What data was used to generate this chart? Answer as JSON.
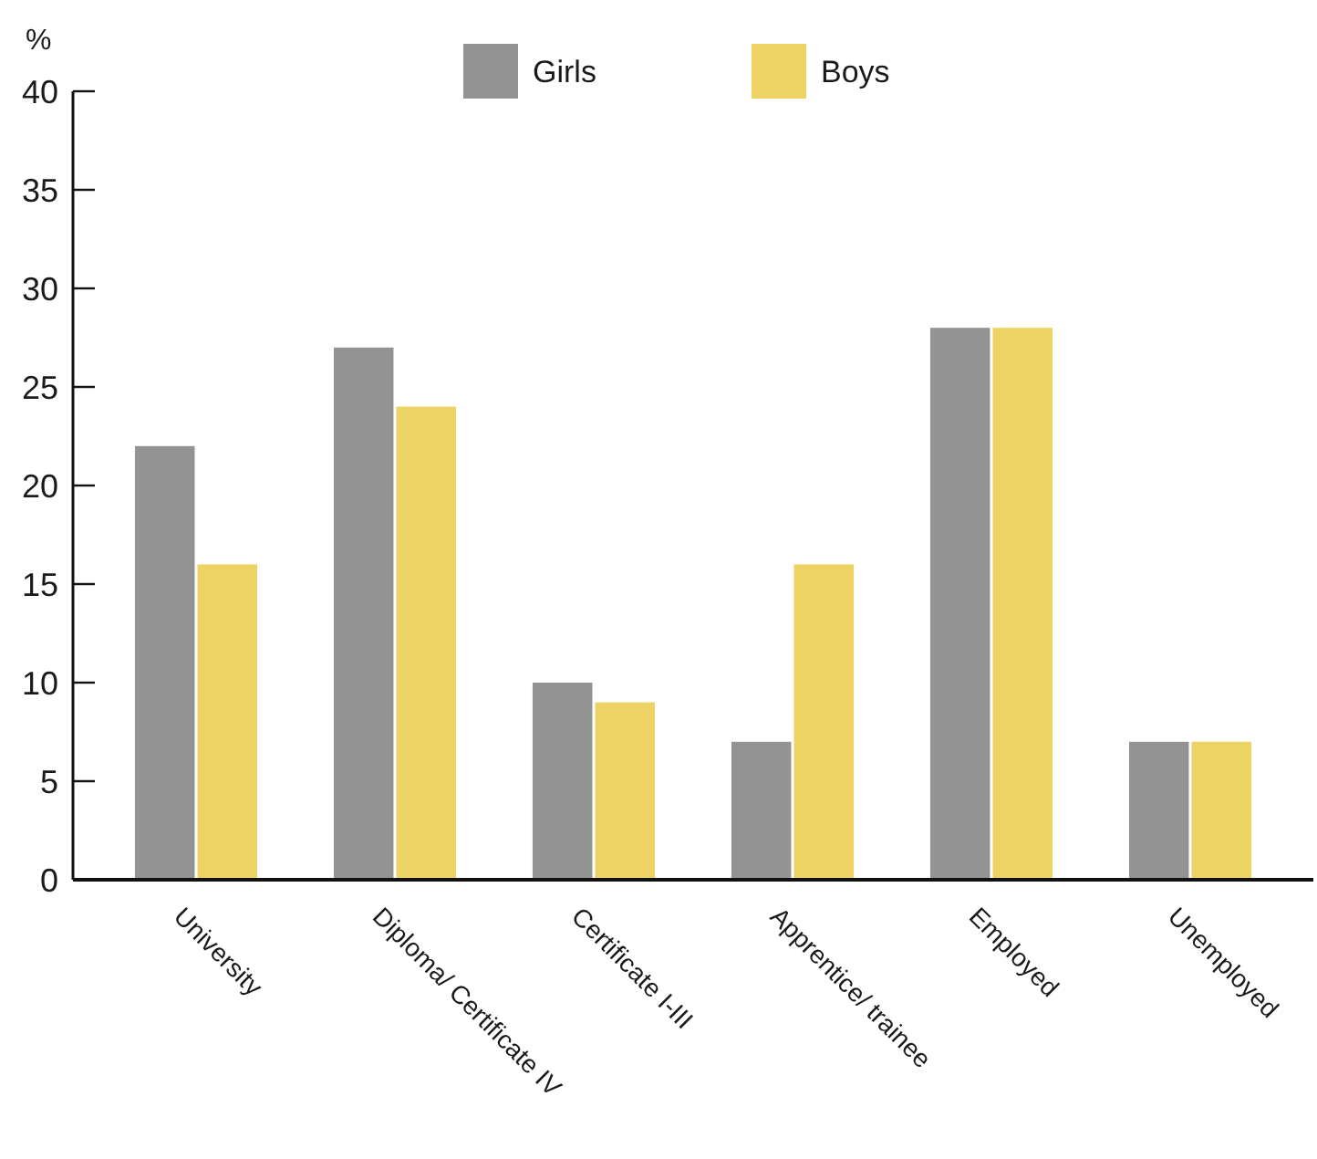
{
  "chart_data": {
    "type": "bar",
    "ylabel": "%",
    "categories": [
      "University",
      "Diploma/ Certificate IV",
      "Certificate I-III",
      "Apprentice/ trainee",
      "Employed",
      "Unemployed"
    ],
    "series": [
      {
        "name": "Girls",
        "color": "#939393",
        "values": [
          22,
          27,
          10,
          7,
          28,
          7
        ]
      },
      {
        "name": "Boys",
        "color": "#edd264",
        "values": [
          16,
          24,
          9,
          16,
          28,
          7
        ]
      }
    ],
    "ylim": [
      0,
      40
    ],
    "yticks": [
      0,
      5,
      10,
      15,
      20,
      25,
      30,
      35,
      40
    ],
    "legend": "top"
  }
}
